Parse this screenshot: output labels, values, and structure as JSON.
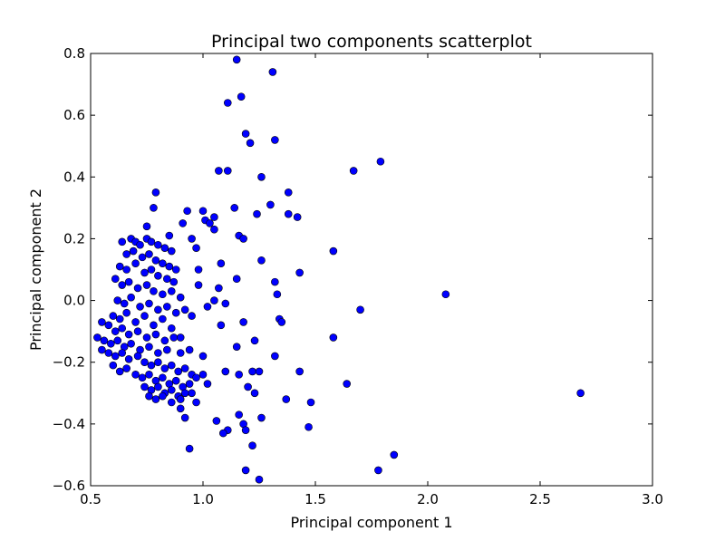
{
  "chart_data": {
    "type": "scatter",
    "title": "Principal two components scatterplot",
    "xlabel": "Principal component 1",
    "ylabel": "Principal component 2",
    "xlim": [
      0.5,
      3.0
    ],
    "ylim": [
      -0.6,
      0.8
    ],
    "xticks": [
      0.5,
      1.0,
      1.5,
      2.0,
      2.5,
      3.0
    ],
    "xtick_labels": [
      "0.5",
      "1.0",
      "1.5",
      "2.0",
      "2.5",
      "3.0"
    ],
    "yticks": [
      -0.6,
      -0.4,
      -0.2,
      0.0,
      0.2,
      0.4,
      0.6,
      0.8
    ],
    "ytick_labels": [
      "−0.6",
      "−0.4",
      "−0.2",
      "0.0",
      "0.2",
      "0.4",
      "0.6",
      "0.8"
    ],
    "grid": false,
    "legend": "none",
    "marker_color": "#0000ff",
    "marker_edge_color": "#000000",
    "points": [
      [
        1.15,
        0.78
      ],
      [
        1.31,
        0.74
      ],
      [
        1.17,
        0.66
      ],
      [
        1.11,
        0.64
      ],
      [
        1.19,
        0.54
      ],
      [
        1.21,
        0.51
      ],
      [
        1.32,
        0.52
      ],
      [
        1.07,
        0.42
      ],
      [
        1.11,
        0.42
      ],
      [
        1.67,
        0.42
      ],
      [
        1.79,
        0.45
      ],
      [
        1.26,
        0.4
      ],
      [
        1.38,
        0.35
      ],
      [
        1.3,
        0.31
      ],
      [
        0.79,
        0.35
      ],
      [
        0.78,
        0.3
      ],
      [
        0.93,
        0.29
      ],
      [
        1.0,
        0.29
      ],
      [
        1.14,
        0.3
      ],
      [
        1.05,
        0.27
      ],
      [
        1.38,
        0.28
      ],
      [
        1.42,
        0.27
      ],
      [
        1.24,
        0.28
      ],
      [
        1.01,
        0.26
      ],
      [
        1.03,
        0.25
      ],
      [
        1.16,
        0.21
      ],
      [
        1.18,
        0.2
      ],
      [
        0.75,
        0.24
      ],
      [
        0.91,
        0.25
      ],
      [
        0.85,
        0.21
      ],
      [
        1.05,
        0.23
      ],
      [
        0.95,
        0.2
      ],
      [
        0.97,
        0.17
      ],
      [
        1.58,
        0.16
      ],
      [
        1.26,
        0.13
      ],
      [
        1.08,
        0.12
      ],
      [
        1.43,
        0.09
      ],
      [
        1.15,
        0.07
      ],
      [
        0.98,
        0.1
      ],
      [
        1.07,
        0.04
      ],
      [
        1.32,
        0.06
      ],
      [
        2.08,
        0.02
      ],
      [
        1.33,
        0.02
      ],
      [
        0.98,
        0.05
      ],
      [
        1.05,
        0.0
      ],
      [
        1.1,
        -0.01
      ],
      [
        1.02,
        -0.02
      ],
      [
        1.7,
        -0.03
      ],
      [
        0.95,
        -0.05
      ],
      [
        1.34,
        -0.06
      ],
      [
        1.35,
        -0.07
      ],
      [
        1.18,
        -0.07
      ],
      [
        1.08,
        -0.08
      ],
      [
        1.58,
        -0.12
      ],
      [
        0.9,
        -0.12
      ],
      [
        1.23,
        -0.13
      ],
      [
        1.15,
        -0.15
      ],
      [
        1.32,
        -0.18
      ],
      [
        1.0,
        -0.18
      ],
      [
        0.9,
        -0.17
      ],
      [
        0.94,
        -0.16
      ],
      [
        1.22,
        -0.23
      ],
      [
        1.16,
        -0.24
      ],
      [
        1.1,
        -0.23
      ],
      [
        1.25,
        -0.23
      ],
      [
        1.43,
        -0.23
      ],
      [
        1.64,
        -0.27
      ],
      [
        1.2,
        -0.28
      ],
      [
        1.23,
        -0.3
      ],
      [
        1.37,
        -0.32
      ],
      [
        1.48,
        -0.33
      ],
      [
        1.16,
        -0.37
      ],
      [
        1.26,
        -0.38
      ],
      [
        1.06,
        -0.39
      ],
      [
        1.11,
        -0.42
      ],
      [
        1.18,
        -0.4
      ],
      [
        1.47,
        -0.41
      ],
      [
        1.19,
        -0.42
      ],
      [
        1.09,
        -0.43
      ],
      [
        0.94,
        -0.48
      ],
      [
        1.22,
        -0.47
      ],
      [
        1.85,
        -0.5
      ],
      [
        1.78,
        -0.55
      ],
      [
        1.19,
        -0.55
      ],
      [
        1.25,
        -0.58
      ],
      [
        2.68,
        -0.3
      ],
      [
        0.92,
        -0.38
      ],
      [
        0.97,
        -0.33
      ],
      [
        0.95,
        -0.3
      ],
      [
        1.02,
        -0.27
      ],
      [
        0.9,
        -0.35
      ],
      [
        0.64,
        0.19
      ],
      [
        0.68,
        0.2
      ],
      [
        0.7,
        0.19
      ],
      [
        0.72,
        0.18
      ],
      [
        0.75,
        0.2
      ],
      [
        0.77,
        0.19
      ],
      [
        0.8,
        0.18
      ],
      [
        0.83,
        0.17
      ],
      [
        0.86,
        0.16
      ],
      [
        0.66,
        0.15
      ],
      [
        0.69,
        0.16
      ],
      [
        0.73,
        0.14
      ],
      [
        0.76,
        0.15
      ],
      [
        0.79,
        0.13
      ],
      [
        0.82,
        0.12
      ],
      [
        0.85,
        0.11
      ],
      [
        0.88,
        0.1
      ],
      [
        0.63,
        0.11
      ],
      [
        0.66,
        0.1
      ],
      [
        0.7,
        0.12
      ],
      [
        0.74,
        0.09
      ],
      [
        0.77,
        0.1
      ],
      [
        0.8,
        0.08
      ],
      [
        0.84,
        0.07
      ],
      [
        0.87,
        0.06
      ],
      [
        0.61,
        0.07
      ],
      [
        0.64,
        0.05
      ],
      [
        0.67,
        0.06
      ],
      [
        0.71,
        0.04
      ],
      [
        0.75,
        0.05
      ],
      [
        0.78,
        0.03
      ],
      [
        0.82,
        0.02
      ],
      [
        0.86,
        0.03
      ],
      [
        0.9,
        0.01
      ],
      [
        0.62,
        0.0
      ],
      [
        0.65,
        -0.01
      ],
      [
        0.68,
        0.01
      ],
      [
        0.72,
        -0.02
      ],
      [
        0.76,
        -0.01
      ],
      [
        0.8,
        -0.03
      ],
      [
        0.84,
        -0.02
      ],
      [
        0.88,
        -0.04
      ],
      [
        0.92,
        -0.03
      ],
      [
        0.6,
        -0.05
      ],
      [
        0.63,
        -0.06
      ],
      [
        0.66,
        -0.04
      ],
      [
        0.7,
        -0.07
      ],
      [
        0.74,
        -0.05
      ],
      [
        0.78,
        -0.08
      ],
      [
        0.82,
        -0.06
      ],
      [
        0.86,
        -0.09
      ],
      [
        0.55,
        -0.07
      ],
      [
        0.58,
        -0.08
      ],
      [
        0.61,
        -0.1
      ],
      [
        0.64,
        -0.09
      ],
      [
        0.67,
        -0.11
      ],
      [
        0.71,
        -0.1
      ],
      [
        0.75,
        -0.12
      ],
      [
        0.79,
        -0.11
      ],
      [
        0.83,
        -0.13
      ],
      [
        0.87,
        -0.12
      ],
      [
        0.53,
        -0.12
      ],
      [
        0.56,
        -0.13
      ],
      [
        0.59,
        -0.14
      ],
      [
        0.62,
        -0.13
      ],
      [
        0.65,
        -0.15
      ],
      [
        0.68,
        -0.14
      ],
      [
        0.72,
        -0.16
      ],
      [
        0.76,
        -0.15
      ],
      [
        0.8,
        -0.17
      ],
      [
        0.84,
        -0.16
      ],
      [
        0.55,
        -0.16
      ],
      [
        0.58,
        -0.17
      ],
      [
        0.61,
        -0.18
      ],
      [
        0.64,
        -0.17
      ],
      [
        0.67,
        -0.19
      ],
      [
        0.71,
        -0.18
      ],
      [
        0.74,
        -0.2
      ],
      [
        0.77,
        -0.21
      ],
      [
        0.8,
        -0.2
      ],
      [
        0.83,
        -0.22
      ],
      [
        0.86,
        -0.21
      ],
      [
        0.89,
        -0.23
      ],
      [
        0.92,
        -0.22
      ],
      [
        0.95,
        -0.24
      ],
      [
        0.6,
        -0.21
      ],
      [
        0.63,
        -0.23
      ],
      [
        0.66,
        -0.22
      ],
      [
        0.7,
        -0.24
      ],
      [
        0.73,
        -0.25
      ],
      [
        0.76,
        -0.24
      ],
      [
        0.79,
        -0.26
      ],
      [
        0.82,
        -0.25
      ],
      [
        0.85,
        -0.27
      ],
      [
        0.88,
        -0.26
      ],
      [
        0.91,
        -0.28
      ],
      [
        0.94,
        -0.27
      ],
      [
        0.97,
        -0.25
      ],
      [
        1.0,
        -0.24
      ],
      [
        0.74,
        -0.28
      ],
      [
        0.77,
        -0.29
      ],
      [
        0.8,
        -0.28
      ],
      [
        0.83,
        -0.3
      ],
      [
        0.86,
        -0.29
      ],
      [
        0.89,
        -0.31
      ],
      [
        0.92,
        -0.3
      ],
      [
        0.76,
        -0.31
      ],
      [
        0.79,
        -0.32
      ],
      [
        0.82,
        -0.31
      ],
      [
        0.86,
        -0.33
      ],
      [
        0.9,
        -0.32
      ]
    ]
  }
}
